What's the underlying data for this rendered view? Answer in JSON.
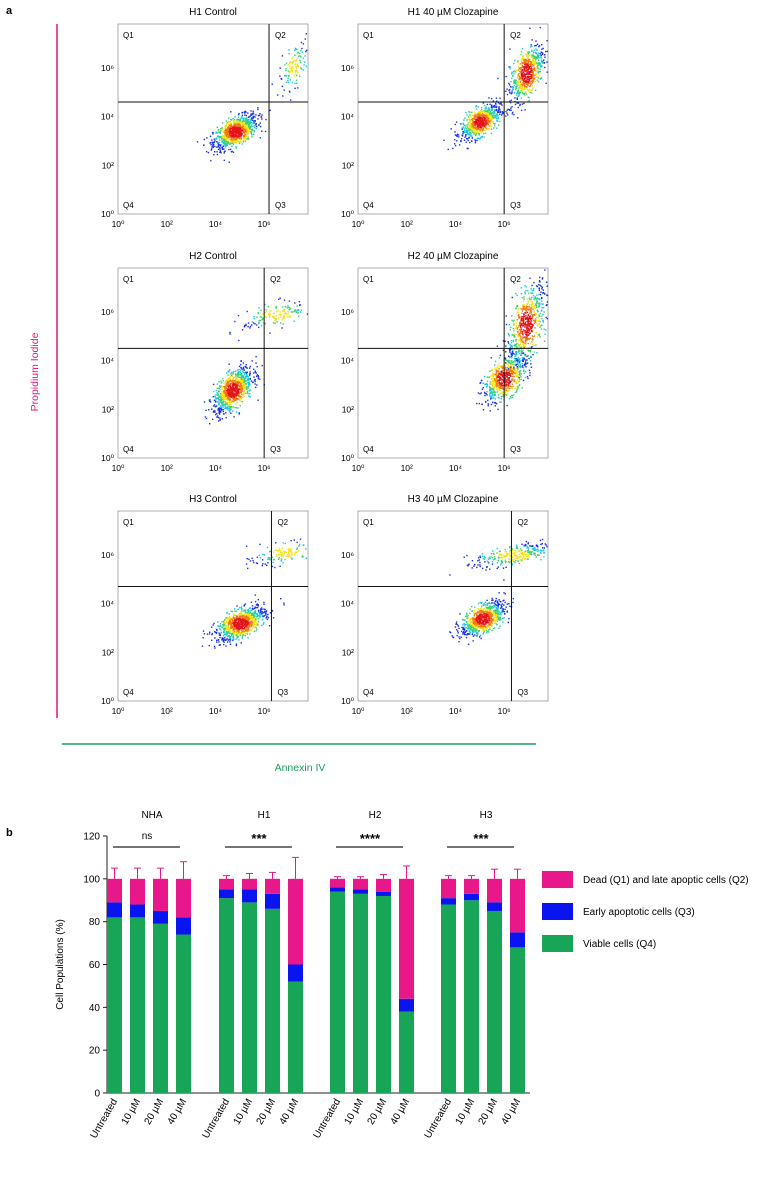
{
  "panel_a": {
    "label": "a",
    "y_axis_label": "Propidium Iodide",
    "x_axis_label": "Annexin IV",
    "axis_ticks": [
      "10⁰",
      "10²",
      "10⁴",
      "10⁶"
    ],
    "quadrants": [
      "Q1",
      "Q2",
      "Q3",
      "Q4"
    ],
    "colors": {
      "y_accent": "#e0157f",
      "x_accent": "#1a9e5a"
    },
    "plots": [
      {
        "title": "H1 Control",
        "gate_x": 6.2,
        "gate_y": 4.6,
        "clusters": [
          {
            "cx": 4.8,
            "cy": 3.4,
            "sx": 0.45,
            "sy": 0.35,
            "n": 900
          },
          {
            "cx": 7.2,
            "cy": 6.1,
            "sx": 0.3,
            "sy": 0.5,
            "n": 120
          }
        ]
      },
      {
        "title": "H1 40 µM Clozapine",
        "gate_x": 6.0,
        "gate_y": 4.6,
        "clusters": [
          {
            "cx": 5.0,
            "cy": 3.8,
            "sx": 0.4,
            "sy": 0.35,
            "n": 700
          },
          {
            "cx": 6.9,
            "cy": 5.8,
            "sx": 0.35,
            "sy": 0.6,
            "n": 650
          }
        ]
      },
      {
        "title": "H2 Control",
        "gate_x": 6.0,
        "gate_y": 4.5,
        "clusters": [
          {
            "cx": 4.7,
            "cy": 2.8,
            "sx": 0.4,
            "sy": 0.45,
            "n": 900
          },
          {
            "cx": 6.5,
            "cy": 5.9,
            "sx": 0.7,
            "sy": 0.3,
            "n": 150
          }
        ]
      },
      {
        "title": "H2 40 µM Clozapine",
        "gate_x": 6.0,
        "gate_y": 4.5,
        "clusters": [
          {
            "cx": 6.0,
            "cy": 3.3,
            "sx": 0.45,
            "sy": 0.5,
            "n": 650
          },
          {
            "cx": 6.9,
            "cy": 5.5,
            "sx": 0.4,
            "sy": 0.8,
            "n": 650
          }
        ]
      },
      {
        "title": "H3 Control",
        "gate_x": 6.3,
        "gate_y": 4.7,
        "clusters": [
          {
            "cx": 5.0,
            "cy": 3.2,
            "sx": 0.5,
            "sy": 0.35,
            "n": 900
          },
          {
            "cx": 6.9,
            "cy": 6.1,
            "sx": 0.7,
            "sy": 0.25,
            "n": 150
          }
        ]
      },
      {
        "title": "H3 40 µM Clozapine",
        "gate_x": 6.3,
        "gate_y": 4.7,
        "clusters": [
          {
            "cx": 5.1,
            "cy": 3.4,
            "sx": 0.45,
            "sy": 0.35,
            "n": 800
          },
          {
            "cx": 6.4,
            "cy": 6.0,
            "sx": 0.8,
            "sy": 0.25,
            "n": 300
          }
        ]
      }
    ]
  },
  "chart_data": {
    "type": "bar",
    "stacked": true,
    "label": "b",
    "title": "",
    "xlabel": "",
    "ylabel": "Cell Populations (%)",
    "ylim": [
      0,
      120
    ],
    "yticks": [
      0,
      20,
      40,
      60,
      80,
      100,
      120
    ],
    "groups": [
      {
        "name": "NHA",
        "significance": "ns"
      },
      {
        "name": "H1",
        "significance": "***"
      },
      {
        "name": "H2",
        "significance": "****"
      },
      {
        "name": "H3",
        "significance": "***"
      }
    ],
    "categories": [
      "Untreated",
      "10 µM",
      "20 µM",
      "40 µM"
    ],
    "series": [
      {
        "name": "Viable cells (Q4)",
        "color": "#18a558",
        "values": [
          [
            82,
            82,
            79,
            74
          ],
          [
            91,
            89,
            86,
            52
          ],
          [
            94,
            93,
            92,
            38
          ],
          [
            88,
            90,
            85,
            68
          ]
        ],
        "errors": [
          [
            4,
            4,
            5,
            6
          ],
          [
            2,
            3,
            4,
            7
          ],
          [
            1,
            1,
            1,
            2
          ],
          [
            2,
            2,
            2,
            3
          ]
        ]
      },
      {
        "name": "Early apoptotic cells (Q3)",
        "color": "#0a14ee",
        "values": [
          [
            7,
            6,
            6,
            8
          ],
          [
            4,
            6,
            7,
            8
          ],
          [
            2,
            2,
            2,
            6
          ],
          [
            3,
            3,
            4,
            7
          ]
        ],
        "errors": [
          [
            1,
            1,
            2,
            4
          ],
          [
            1,
            1,
            2,
            3
          ],
          [
            0.5,
            0.5,
            0.5,
            2
          ],
          [
            1,
            1,
            1,
            2
          ]
        ]
      },
      {
        "name": "Dead (Q1) and late apoptic cells (Q2)",
        "color": "#e8178a",
        "values": [
          [
            11,
            12,
            15,
            18
          ],
          [
            5,
            5,
            7,
            40
          ],
          [
            4,
            5,
            6,
            56
          ],
          [
            9,
            7,
            11,
            25
          ]
        ],
        "errors": [
          [
            5,
            5,
            5,
            8
          ],
          [
            1.5,
            2.5,
            3,
            10
          ],
          [
            1,
            1,
            2,
            6
          ],
          [
            1.5,
            1.5,
            4.5,
            4.5
          ]
        ]
      }
    ],
    "legend": [
      "Dead (Q1) and late apoptic cells (Q2)",
      "Early apoptotic cells (Q3)",
      "Viable cells (Q4)"
    ]
  }
}
